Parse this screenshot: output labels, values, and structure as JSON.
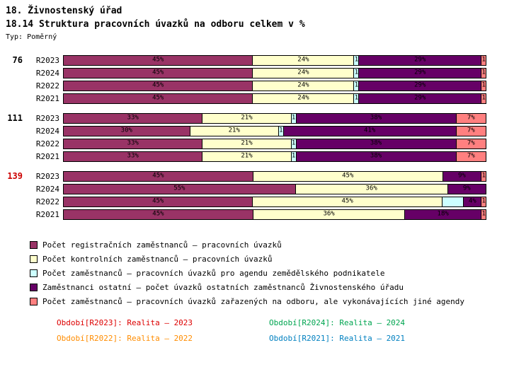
{
  "header": {
    "title_line1": "18. Živnostenský úřad",
    "title_line2": "18.14 Struktura pracovních úvazků na odboru celkem v %",
    "type_label": "Typ: Poměrný"
  },
  "chart_data": {
    "type": "bar",
    "orientation": "horizontal",
    "stacked": true,
    "value_unit": "%",
    "x_range": [
      0,
      100
    ],
    "legend_position": "bottom-left",
    "series": [
      {
        "key": "registracni",
        "color": "#993366",
        "label": "Počet registračních zaměstnanců – pracovních úvazků"
      },
      {
        "key": "kontrolni",
        "color": "#FFFFCC",
        "label": "Počet kontrolních zaměstnanců – pracovních úvazků"
      },
      {
        "key": "zemedelsky",
        "color": "#CCFFFF",
        "label": "Počet zaměstnanců – pracovních úvazků pro agendu zemědělského podnikatele"
      },
      {
        "key": "ostatni",
        "color": "#660066",
        "label": "Zaměstnanci ostatní – počet úvazků ostatních zaměstnanců Živnostenského úřadu"
      },
      {
        "key": "jine",
        "color": "#FF8080",
        "label": "Počet zaměstnanců – pracovních úvazků zařazených na odboru, ale vykonávajících jiné agendy"
      }
    ],
    "groups": [
      {
        "label": "76",
        "label_color": "#000000",
        "rows": [
          {
            "period": "R2023",
            "segments": [
              {
                "key": "registracni",
                "value": 45,
                "label": "45%"
              },
              {
                "key": "kontrolni",
                "value": 24,
                "label": "24%"
              },
              {
                "key": "zemedelsky",
                "value": 1,
                "label": "1"
              },
              {
                "key": "ostatni",
                "value": 29,
                "label": "29%"
              },
              {
                "key": "jine",
                "value": 1,
                "label": "1"
              }
            ]
          },
          {
            "period": "R2024",
            "segments": [
              {
                "key": "registracni",
                "value": 45,
                "label": "45%"
              },
              {
                "key": "kontrolni",
                "value": 24,
                "label": "24%"
              },
              {
                "key": "zemedelsky",
                "value": 1,
                "label": "1"
              },
              {
                "key": "ostatni",
                "value": 29,
                "label": "29%"
              },
              {
                "key": "jine",
                "value": 1,
                "label": "1"
              }
            ]
          },
          {
            "period": "R2022",
            "segments": [
              {
                "key": "registracni",
                "value": 45,
                "label": "45%"
              },
              {
                "key": "kontrolni",
                "value": 24,
                "label": "24%"
              },
              {
                "key": "zemedelsky",
                "value": 1,
                "label": "1"
              },
              {
                "key": "ostatni",
                "value": 29,
                "label": "29%"
              },
              {
                "key": "jine",
                "value": 1,
                "label": "1"
              }
            ]
          },
          {
            "period": "R2021",
            "segments": [
              {
                "key": "registracni",
                "value": 45,
                "label": "45%"
              },
              {
                "key": "kontrolni",
                "value": 24,
                "label": "24%"
              },
              {
                "key": "zemedelsky",
                "value": 1,
                "label": "1"
              },
              {
                "key": "ostatni",
                "value": 29,
                "label": "29%"
              },
              {
                "key": "jine",
                "value": 1,
                "label": "1"
              }
            ]
          }
        ]
      },
      {
        "label": "111",
        "label_color": "#000000",
        "rows": [
          {
            "period": "R2023",
            "segments": [
              {
                "key": "registracni",
                "value": 33,
                "label": "33%"
              },
              {
                "key": "kontrolni",
                "value": 21,
                "label": "21%"
              },
              {
                "key": "zemedelsky",
                "value": 1,
                "label": "1"
              },
              {
                "key": "ostatni",
                "value": 38,
                "label": "38%"
              },
              {
                "key": "jine",
                "value": 7,
                "label": "7%"
              }
            ]
          },
          {
            "period": "R2024",
            "segments": [
              {
                "key": "registracni",
                "value": 30,
                "label": "30%"
              },
              {
                "key": "kontrolni",
                "value": 21,
                "label": "21%"
              },
              {
                "key": "zemedelsky",
                "value": 1,
                "label": "1"
              },
              {
                "key": "ostatni",
                "value": 41,
                "label": "41%"
              },
              {
                "key": "jine",
                "value": 7,
                "label": "7%"
              }
            ]
          },
          {
            "period": "R2022",
            "segments": [
              {
                "key": "registracni",
                "value": 33,
                "label": "33%"
              },
              {
                "key": "kontrolni",
                "value": 21,
                "label": "21%"
              },
              {
                "key": "zemedelsky",
                "value": 1,
                "label": "1"
              },
              {
                "key": "ostatni",
                "value": 38,
                "label": "38%"
              },
              {
                "key": "jine",
                "value": 7,
                "label": "7%"
              }
            ]
          },
          {
            "period": "R2021",
            "segments": [
              {
                "key": "registracni",
                "value": 33,
                "label": "33%"
              },
              {
                "key": "kontrolni",
                "value": 21,
                "label": "21%"
              },
              {
                "key": "zemedelsky",
                "value": 1,
                "label": "1"
              },
              {
                "key": "ostatni",
                "value": 38,
                "label": "38%"
              },
              {
                "key": "jine",
                "value": 7,
                "label": "7%"
              }
            ]
          }
        ]
      },
      {
        "label": "139",
        "label_color": "#CC0000",
        "rows": [
          {
            "period": "R2023",
            "segments": [
              {
                "key": "registracni",
                "value": 45,
                "label": "45%"
              },
              {
                "key": "kontrolni",
                "value": 45,
                "label": "45%"
              },
              {
                "key": "ostatni",
                "value": 9,
                "label": "9%"
              },
              {
                "key": "jine",
                "value": 1,
                "label": "1"
              }
            ]
          },
          {
            "period": "R2024",
            "segments": [
              {
                "key": "registracni",
                "value": 55,
                "label": "55%"
              },
              {
                "key": "kontrolni",
                "value": 36,
                "label": "36%"
              },
              {
                "key": "ostatni",
                "value": 9,
                "label": "9%"
              }
            ]
          },
          {
            "period": "R2022",
            "segments": [
              {
                "key": "registracni",
                "value": 45,
                "label": "45%"
              },
              {
                "key": "kontrolni",
                "value": 45,
                "label": "45%"
              },
              {
                "key": "zemedelsky",
                "value": 5,
                "label": ""
              },
              {
                "key": "ostatni",
                "value": 4,
                "label": "4%"
              },
              {
                "key": "jine",
                "value": 1,
                "label": "1"
              }
            ]
          },
          {
            "period": "R2021",
            "segments": [
              {
                "key": "registracni",
                "value": 45,
                "label": "45%"
              },
              {
                "key": "kontrolni",
                "value": 36,
                "label": "36%"
              },
              {
                "key": "ostatni",
                "value": 18,
                "label": "18%"
              },
              {
                "key": "jine",
                "value": 1,
                "label": "1"
              }
            ]
          }
        ]
      }
    ]
  },
  "periods": [
    {
      "label": "Období[R2023]:",
      "value": "Realita – 2023",
      "color": "#DD0000"
    },
    {
      "label": "Období[R2024]:",
      "value": "Realita – 2024",
      "color": "#00A550"
    },
    {
      "label": "Období[R2022]:",
      "value": "Realita – 2022",
      "color": "#FF8C00"
    },
    {
      "label": "Období[R2021]:",
      "value": "Realita – 2021",
      "color": "#0080C0"
    }
  ]
}
